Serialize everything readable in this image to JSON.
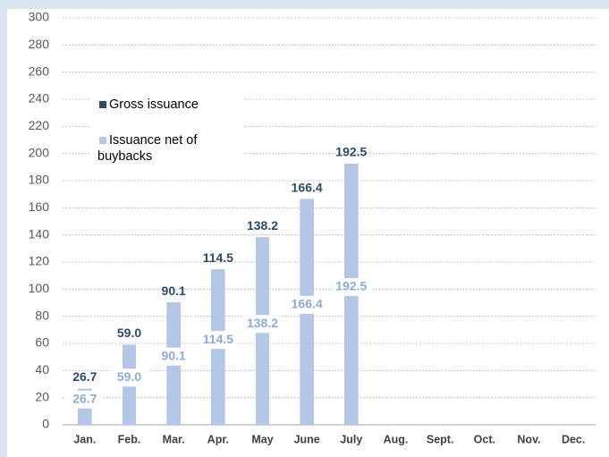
{
  "chart_data": {
    "type": "bar",
    "categories": [
      "Jan.",
      "Feb.",
      "Mar.",
      "Apr.",
      "May",
      "June",
      "July",
      "Aug.",
      "Sept.",
      "Oct.",
      "Nov.",
      "Dec."
    ],
    "series": [
      {
        "name": "Gross issuance",
        "color": "#2e4a6b",
        "values": [
          26.7,
          59.0,
          90.1,
          114.5,
          138.2,
          166.4,
          192.5,
          null,
          null,
          null,
          null,
          null
        ],
        "value_labels": [
          "26.7",
          "59.0",
          "90.1",
          "114.5",
          "138.2",
          "166.4",
          "192.5",
          null,
          null,
          null,
          null,
          null
        ]
      },
      {
        "name": "Issuance net of buybacks",
        "color": "#b4c7e7",
        "values": [
          26.7,
          59.0,
          90.1,
          114.5,
          138.2,
          166.4,
          192.5,
          null,
          null,
          null,
          null,
          null
        ],
        "value_labels": [
          "26.7",
          "59.0",
          "90.1",
          "114.5",
          "138.2",
          "166.4",
          "192.5",
          null,
          null,
          null,
          null,
          null
        ]
      }
    ],
    "ylim": [
      0,
      300
    ],
    "yticks": [
      0,
      20,
      40,
      60,
      80,
      100,
      120,
      140,
      160,
      180,
      200,
      220,
      240,
      260,
      280,
      300
    ],
    "grid": true,
    "legend": "upper left"
  }
}
